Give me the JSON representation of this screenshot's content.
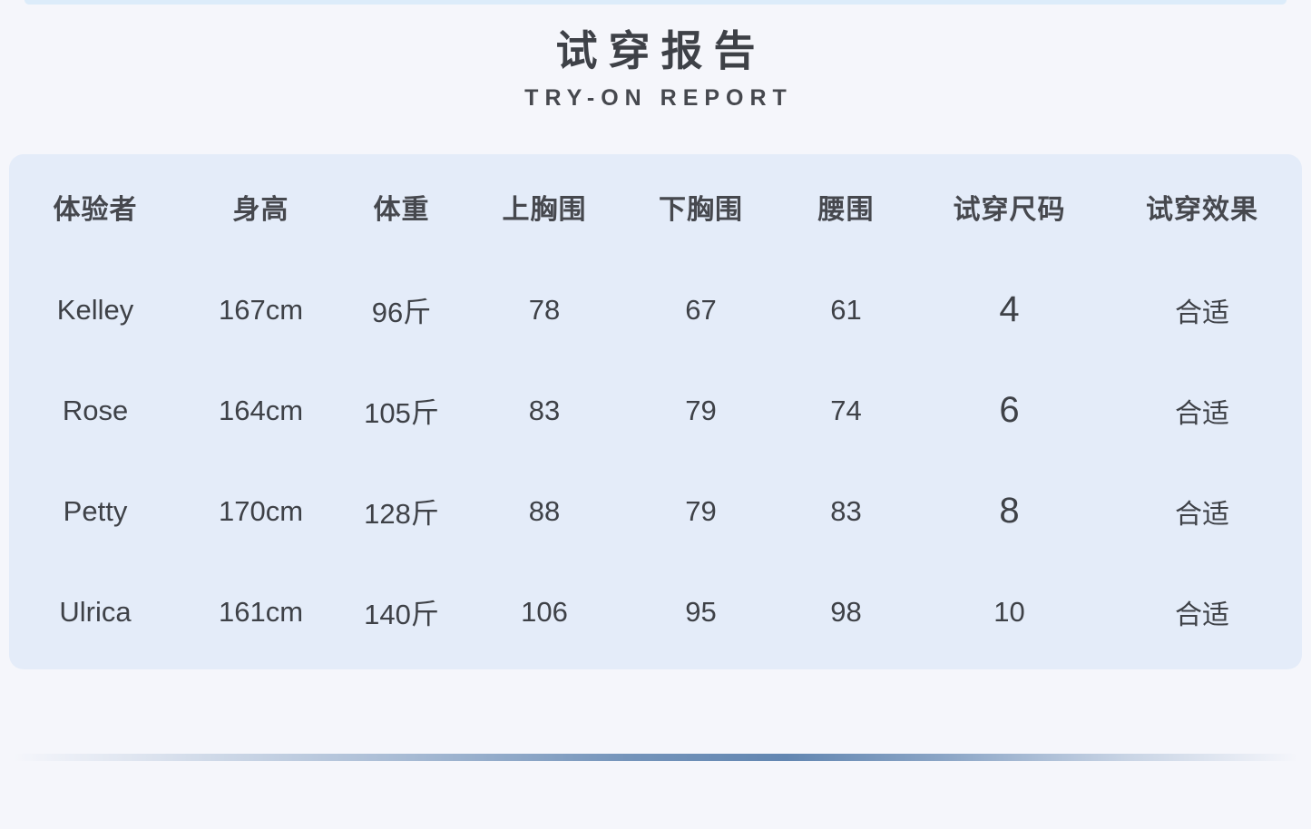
{
  "page": {
    "title": "试穿报告",
    "subtitle": "TRY-ON REPORT"
  },
  "colors": {
    "page_bg": "#f5f6fb",
    "panel_bg": "#e4ecf9",
    "top_bar": "#dcecfa",
    "divider": "#6286b1",
    "text_dark": "#3e4147",
    "header_text": "#46484e"
  },
  "table": {
    "columns": [
      "体验者",
      "身高",
      "体重",
      "上胸围",
      "下胸围",
      "腰围",
      "试穿尺码",
      "试穿效果"
    ],
    "rows": [
      [
        "Kelley",
        "167cm",
        "96斤",
        "78",
        "67",
        "61",
        "4",
        "合适"
      ],
      [
        "Rose",
        "164cm",
        "105斤",
        "83",
        "79",
        "74",
        "6",
        "合适"
      ],
      [
        "Petty",
        "170cm",
        "128斤",
        "88",
        "79",
        "83",
        "8",
        "合适"
      ],
      [
        "Ulrica",
        "161cm",
        "140斤",
        "106",
        "95",
        "98",
        "10",
        "合适"
      ]
    ]
  }
}
